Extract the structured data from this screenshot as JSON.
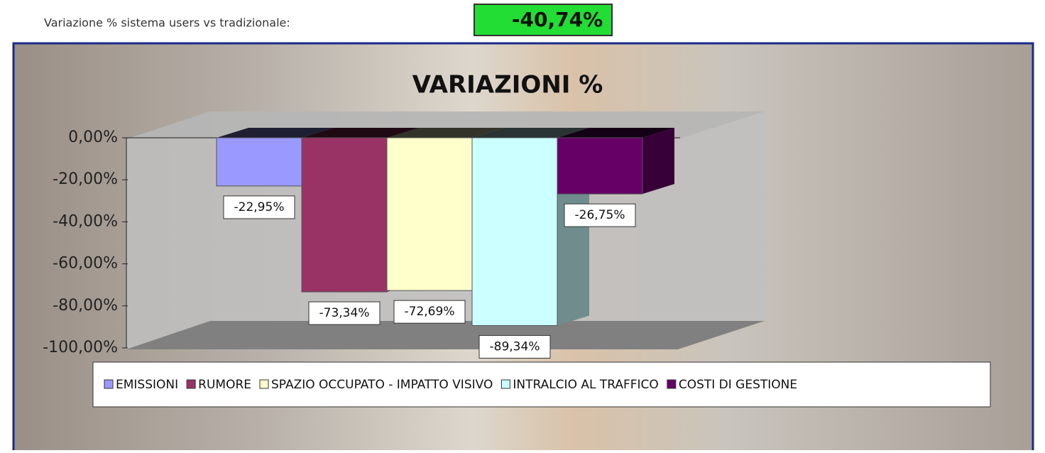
{
  "header": {
    "label": "Variazione % sistema users vs tradizionale:",
    "value": "-40,74%"
  },
  "chart_data": {
    "type": "bar3d",
    "title": "VARIAZIONI %",
    "categories": [
      null
    ],
    "series": [
      {
        "name": "EMISSIONI",
        "color": "#9999ff",
        "values": [
          -22.95
        ],
        "value_labels": [
          "-22,95%"
        ]
      },
      {
        "name": "RUMORE",
        "color": "#993366",
        "values": [
          -73.34
        ],
        "value_labels": [
          "-73,34%"
        ]
      },
      {
        "name": "SPAZIO OCCUPATO - IMPATTO VISIVO",
        "color": "#ffffcc",
        "values": [
          -72.69
        ],
        "value_labels": [
          "-72,69%"
        ]
      },
      {
        "name": "INTRALCIO AL TRAFFICO",
        "color": "#ccffff",
        "values": [
          -89.34
        ],
        "value_labels": [
          "-89,34%"
        ]
      },
      {
        "name": "COSTI DI GESTIONE",
        "color": "#660066",
        "values": [
          -26.75
        ],
        "value_labels": [
          "-26,75%"
        ]
      }
    ],
    "ylim": [
      -100,
      0
    ],
    "yticks": [
      {
        "value": 0,
        "label": "0,00%"
      },
      {
        "value": -20,
        "label": "-20,00%"
      },
      {
        "value": -40,
        "label": "-40,00%"
      },
      {
        "value": -60,
        "label": "-60,00%"
      },
      {
        "value": -80,
        "label": "-80,00%"
      },
      {
        "value": -100,
        "label": "-100,00%"
      }
    ],
    "legend": "bottom"
  }
}
